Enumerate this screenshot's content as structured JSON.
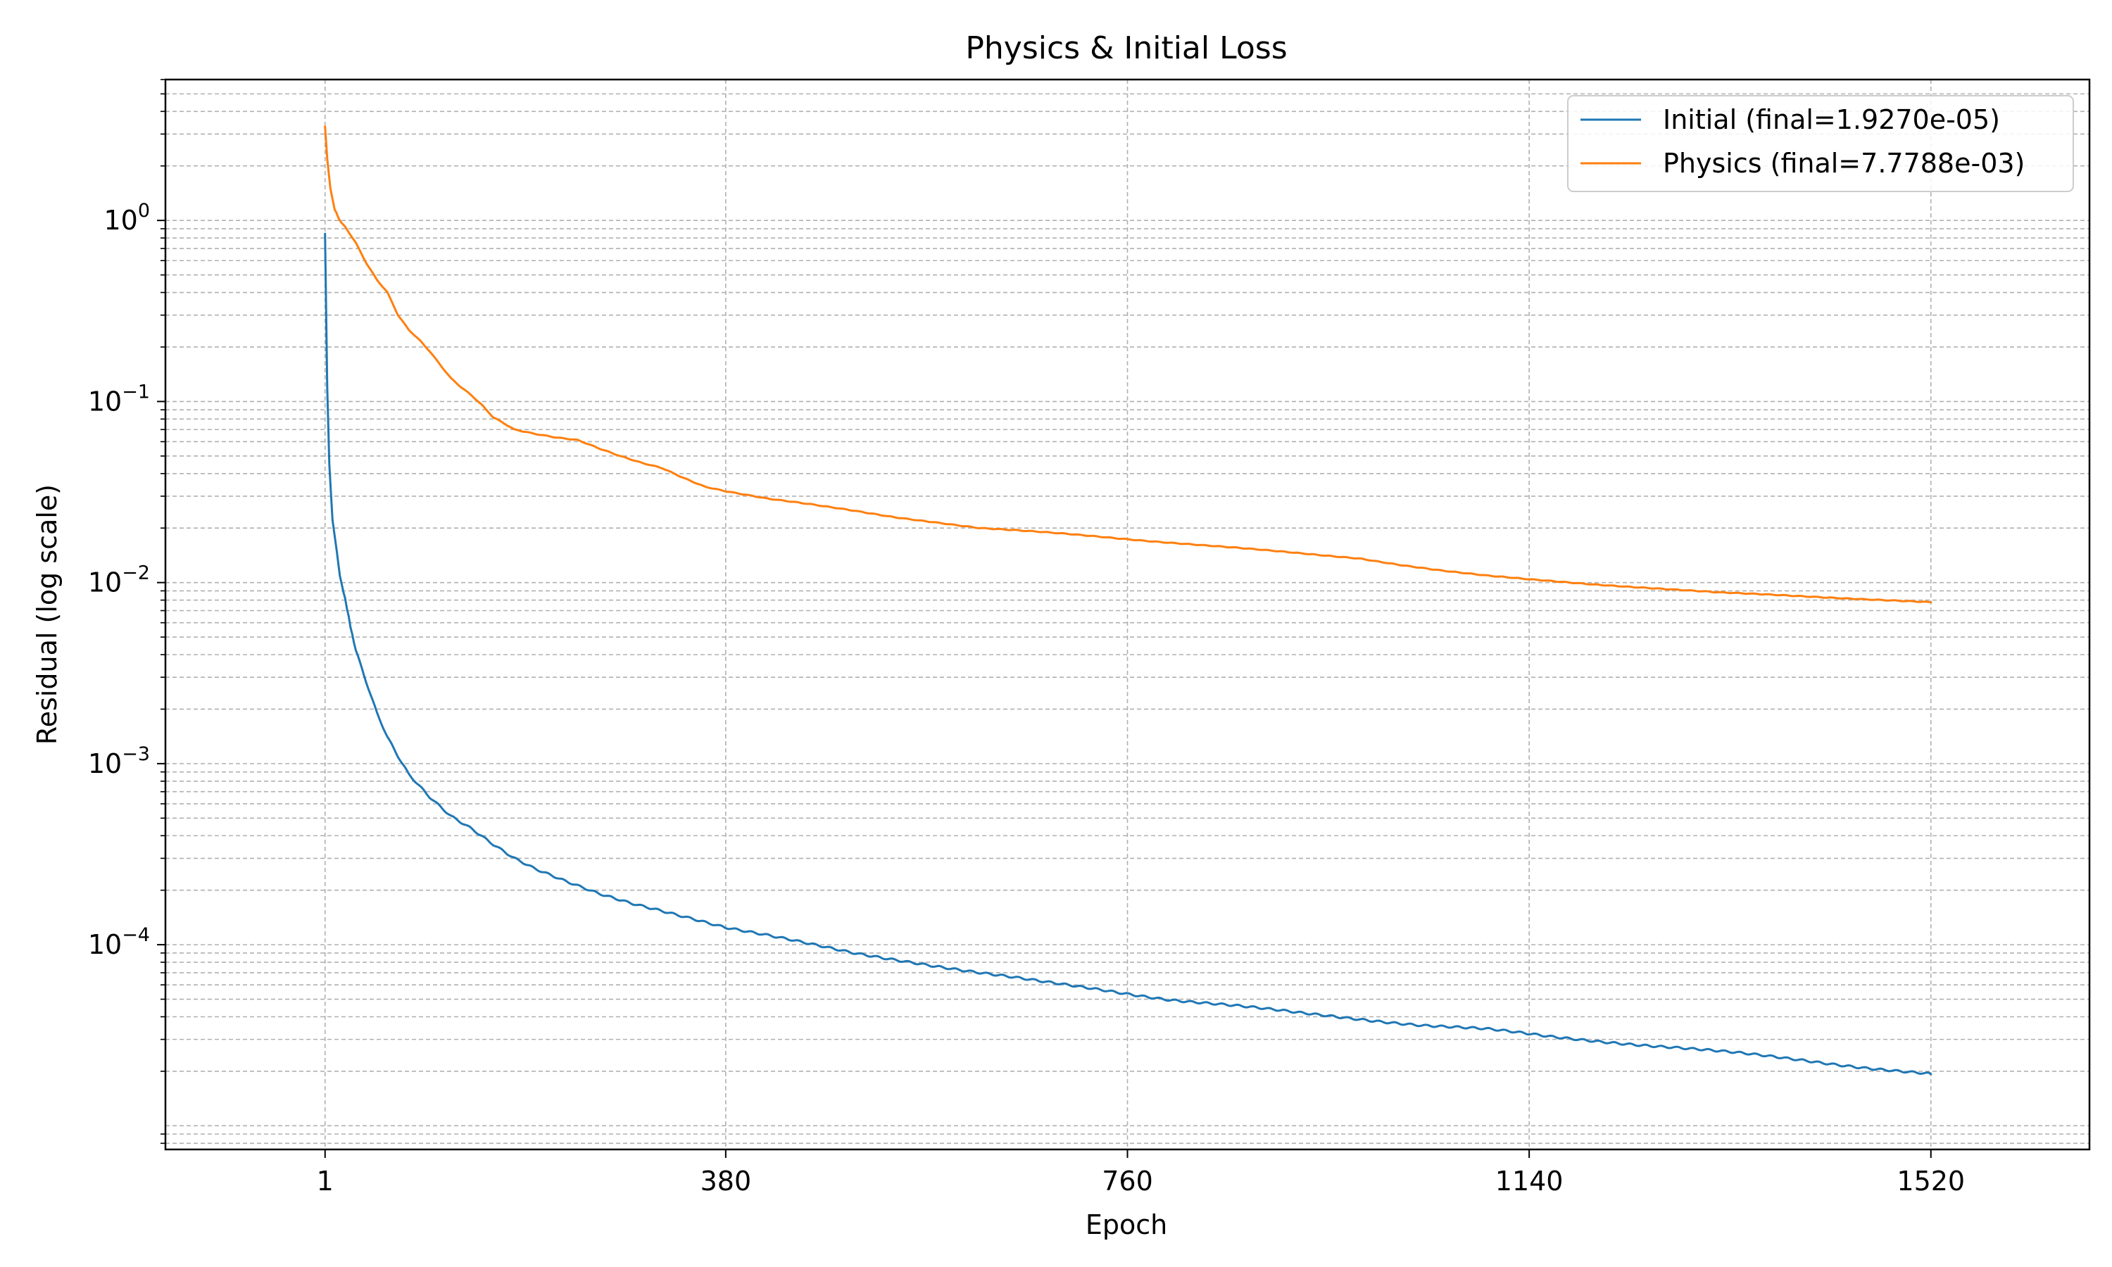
{
  "chart_data": {
    "type": "line",
    "title": "Physics & Initial Loss",
    "xlabel": "Epoch",
    "ylabel": "Residual (log scale)",
    "x_scale": "linear",
    "y_scale": "log",
    "xlim": [
      -150,
      1670
    ],
    "ylim": [
      7.4e-06,
      6.0
    ],
    "x_ticks": [
      1,
      380,
      760,
      1140,
      1520
    ],
    "x_tick_labels": [
      "1",
      "380",
      "760",
      "1140",
      "1520"
    ],
    "y_ticks": [
      {
        "value": 1,
        "base": "10",
        "exp": "0"
      },
      {
        "value": 0.1,
        "base": "10",
        "exp": "−1"
      },
      {
        "value": 0.01,
        "base": "10",
        "exp": "−2"
      },
      {
        "value": 0.001,
        "base": "10",
        "exp": "−3"
      },
      {
        "value": 0.0001,
        "base": "10",
        "exp": "−4"
      }
    ],
    "grid": true,
    "legend_position": "top-right",
    "series": [
      {
        "name": "Initial (final=1.9270e-05)",
        "color": "#1f77b4",
        "points": [
          [
            1,
            0.85
          ],
          [
            3,
            0.12
          ],
          [
            5,
            0.045
          ],
          [
            8,
            0.022
          ],
          [
            12,
            0.015
          ],
          [
            15,
            0.011
          ],
          [
            20,
            0.008
          ],
          [
            25,
            0.0058
          ],
          [
            30,
            0.0042
          ],
          [
            40,
            0.0028
          ],
          [
            50,
            0.0019
          ],
          [
            60,
            0.0014
          ],
          [
            70,
            0.0011
          ],
          [
            80,
            0.00088
          ],
          [
            100,
            0.00066
          ],
          [
            120,
            0.00052
          ],
          [
            140,
            0.00044
          ],
          [
            160,
            0.00036
          ],
          [
            180,
            0.0003
          ],
          [
            200,
            0.00026
          ],
          [
            230,
            0.00022
          ],
          [
            260,
            0.00019
          ],
          [
            290,
            0.00017
          ],
          [
            320,
            0.000155
          ],
          [
            350,
            0.00014
          ],
          [
            380,
            0.000125
          ],
          [
            420,
            0.000112
          ],
          [
            460,
            0.0001
          ],
          [
            500,
            9e-05
          ],
          [
            560,
            8e-05
          ],
          [
            620,
            7e-05
          ],
          [
            680,
            6.2e-05
          ],
          [
            740,
            5.6e-05
          ],
          [
            800,
            5e-05
          ],
          [
            860,
            4.6e-05
          ],
          [
            920,
            4.2e-05
          ],
          [
            980,
            3.9e-05
          ],
          [
            1040,
            3.6e-05
          ],
          [
            1100,
            3.4e-05
          ],
          [
            1160,
            3.1e-05
          ],
          [
            1220,
            2.9e-05
          ],
          [
            1280,
            2.7e-05
          ],
          [
            1340,
            2.5e-05
          ],
          [
            1400,
            2.3e-05
          ],
          [
            1460,
            2.1e-05
          ],
          [
            1520,
            1.927e-05
          ]
        ]
      },
      {
        "name": "Physics (final=7.7788e-03)",
        "color": "#ff7f0e",
        "points": [
          [
            1,
            3.3
          ],
          [
            3,
            2.2
          ],
          [
            6,
            1.5
          ],
          [
            10,
            1.15
          ],
          [
            15,
            1.0
          ],
          [
            20,
            0.92
          ],
          [
            30,
            0.75
          ],
          [
            40,
            0.58
          ],
          [
            50,
            0.47
          ],
          [
            60,
            0.4
          ],
          [
            70,
            0.3
          ],
          [
            80,
            0.25
          ],
          [
            90,
            0.22
          ],
          [
            100,
            0.19
          ],
          [
            110,
            0.16
          ],
          [
            120,
            0.135
          ],
          [
            130,
            0.12
          ],
          [
            140,
            0.108
          ],
          [
            150,
            0.095
          ],
          [
            160,
            0.082
          ],
          [
            170,
            0.076
          ],
          [
            180,
            0.07
          ],
          [
            200,
            0.066
          ],
          [
            220,
            0.063
          ],
          [
            240,
            0.061
          ],
          [
            260,
            0.055
          ],
          [
            280,
            0.05
          ],
          [
            300,
            0.046
          ],
          [
            320,
            0.043
          ],
          [
            340,
            0.038
          ],
          [
            360,
            0.034
          ],
          [
            380,
            0.032
          ],
          [
            420,
            0.029
          ],
          [
            460,
            0.027
          ],
          [
            500,
            0.025
          ],
          [
            540,
            0.023
          ],
          [
            580,
            0.0215
          ],
          [
            620,
            0.02
          ],
          [
            660,
            0.0193
          ],
          [
            700,
            0.0186
          ],
          [
            740,
            0.0178
          ],
          [
            780,
            0.017
          ],
          [
            820,
            0.0163
          ],
          [
            860,
            0.0156
          ],
          [
            900,
            0.0149
          ],
          [
            940,
            0.0142
          ],
          [
            980,
            0.0136
          ],
          [
            1020,
            0.0125
          ],
          [
            1060,
            0.0116
          ],
          [
            1100,
            0.0109
          ],
          [
            1140,
            0.0104
          ],
          [
            1200,
            0.0098
          ],
          [
            1260,
            0.0093
          ],
          [
            1320,
            0.0088
          ],
          [
            1380,
            0.0085
          ],
          [
            1440,
            0.0082
          ],
          [
            1480,
            0.008
          ],
          [
            1520,
            0.0077788
          ]
        ]
      }
    ]
  }
}
